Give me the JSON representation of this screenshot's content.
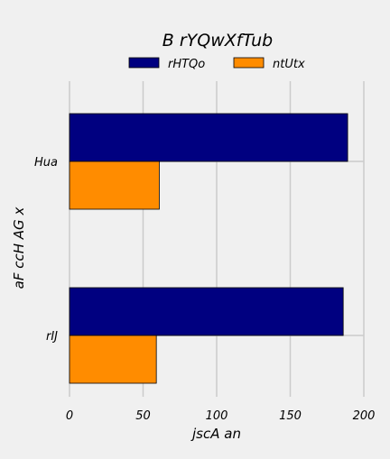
{
  "chart_data": {
    "type": "bar",
    "orientation": "horizontal",
    "title": "B rYQwXfTub",
    "xlabel": "jscA  an",
    "ylabel": "aF ccH  AG x",
    "categories": [
      "Hua",
      "rIJ"
    ],
    "series": [
      {
        "name": "rHTQo",
        "color": "#000080",
        "values": [
          189,
          186
        ]
      },
      {
        "name": "ntUtx",
        "color": "#ff8c00",
        "values": [
          61,
          59
        ]
      }
    ],
    "xlim": [
      0,
      200
    ],
    "xticks": [
      0,
      50,
      100,
      150,
      200
    ],
    "grid": true,
    "legend_position": "top"
  }
}
